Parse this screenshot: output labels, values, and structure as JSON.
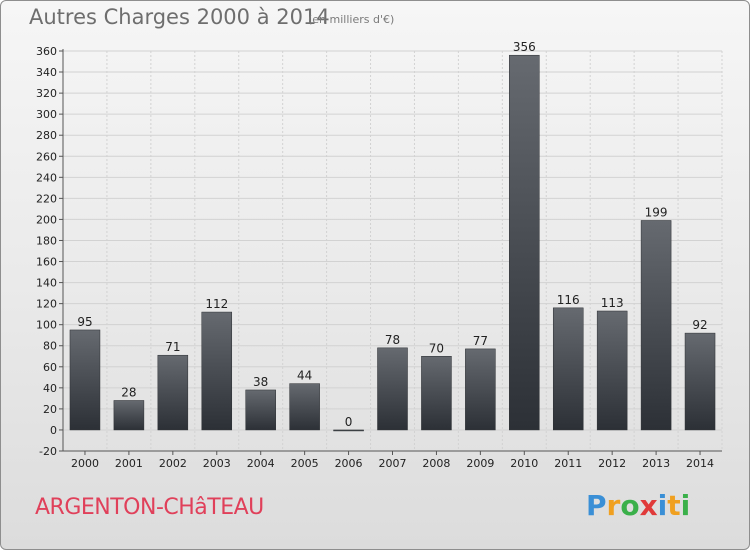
{
  "title": "Autres Charges 2000 à 2014",
  "subtitle": "(en milliers d'€)",
  "place": "ARGENTON-CHâTEAU",
  "logo": {
    "letters": [
      "P",
      "r",
      "o",
      "x",
      "i",
      "t",
      "i"
    ],
    "colors": [
      "#3a8fd6",
      "#f0a020",
      "#3ab04a",
      "#e03a3a",
      "#3a8fd6",
      "#f0a020",
      "#3ab04a"
    ]
  },
  "colors": {
    "bar_top": "#666a70",
    "bar_bottom": "#2c3036",
    "grid": "#d2d2d2",
    "axis_text": "#222222",
    "place_text": "#e0405a"
  },
  "chart_data": {
    "type": "bar",
    "categories": [
      "2000",
      "2001",
      "2002",
      "2003",
      "2004",
      "2005",
      "2006",
      "2007",
      "2008",
      "2009",
      "2010",
      "2011",
      "2012",
      "2013",
      "2014"
    ],
    "values": [
      95,
      28,
      71,
      112,
      38,
      44,
      0,
      78,
      70,
      77,
      356,
      116,
      113,
      199,
      92
    ],
    "value_labels": [
      "95",
      "28",
      "71",
      "112",
      "38",
      "44",
      "0",
      "78",
      "70",
      "77",
      "356",
      "116",
      "113",
      "199",
      "92"
    ],
    "y_ticks": [
      -20,
      0,
      20,
      40,
      60,
      80,
      100,
      120,
      140,
      160,
      180,
      200,
      220,
      240,
      260,
      280,
      300,
      320,
      340,
      360
    ],
    "y_tick_labels": [
      "-20",
      "0",
      "20",
      "40",
      "60",
      "80",
      "100",
      "120",
      "140",
      "160",
      "180",
      "200",
      "220",
      "240",
      "260",
      "280",
      "300",
      "320",
      "340",
      "360"
    ],
    "ylim": [
      -20,
      360
    ],
    "grid": true,
    "title": "Autres Charges 2000 à 2014",
    "xlabel": "",
    "ylabel": ""
  }
}
